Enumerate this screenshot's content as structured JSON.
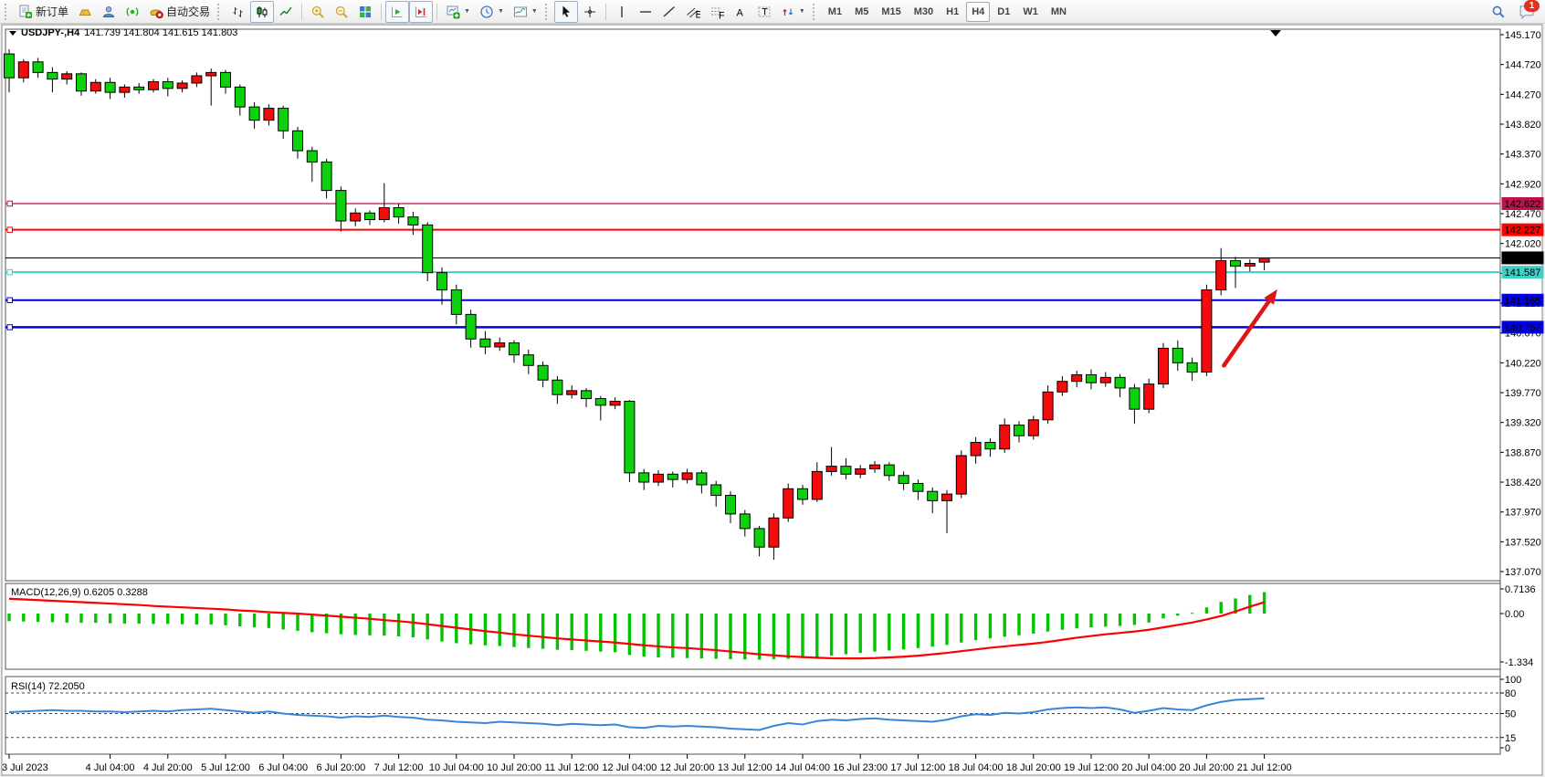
{
  "app": {
    "toolbar": {
      "new_order_label": "新订单",
      "autotrading_label": "自动交易",
      "notification_count": "1",
      "items": [
        {
          "type": "grip"
        },
        {
          "type": "button",
          "name": "new-order-button",
          "icon": "new-order-icon",
          "label_key": "new_order_label"
        },
        {
          "type": "button",
          "name": "metaeditor-button",
          "icon": "metaeditor-icon"
        },
        {
          "type": "button",
          "name": "community-button",
          "icon": "community-icon"
        },
        {
          "type": "button",
          "name": "signals-button",
          "icon": "signals-icon"
        },
        {
          "type": "button",
          "name": "autotrading-button",
          "icon": "autotrading-icon",
          "label_key": "autotrading_label"
        },
        {
          "type": "grip"
        },
        {
          "type": "button",
          "name": "bar-chart-button",
          "icon": "bar-chart-icon"
        },
        {
          "type": "button",
          "name": "candlestick-chart-button",
          "icon": "candlestick-icon",
          "active": true
        },
        {
          "type": "button",
          "name": "line-chart-button",
          "icon": "line-chart-icon"
        },
        {
          "type": "sep"
        },
        {
          "type": "button",
          "name": "zoom-in-button",
          "icon": "zoom-in-icon"
        },
        {
          "type": "button",
          "name": "zoom-out-button",
          "icon": "zoom-out-icon"
        },
        {
          "type": "button",
          "name": "tile-windows-button",
          "icon": "tile-windows-icon"
        },
        {
          "type": "sep"
        },
        {
          "type": "button",
          "name": "auto-scroll-button",
          "icon": "auto-scroll-icon",
          "active": true
        },
        {
          "type": "button",
          "name": "chart-shift-button",
          "icon": "chart-shift-icon",
          "active": true
        },
        {
          "type": "sep"
        },
        {
          "type": "button",
          "name": "new-chart-button",
          "icon": "new-chart-icon",
          "caret": true
        },
        {
          "type": "button",
          "name": "periods-button",
          "icon": "clock-icon",
          "caret": true
        },
        {
          "type": "button",
          "name": "templates-button",
          "icon": "template-icon",
          "caret": true
        },
        {
          "type": "grip"
        },
        {
          "type": "button",
          "name": "cursor-button",
          "icon": "cursor-icon",
          "active": true
        },
        {
          "type": "button",
          "name": "crosshair-button",
          "icon": "crosshair-icon"
        },
        {
          "type": "sep"
        },
        {
          "type": "button",
          "name": "vertical-line-button",
          "icon": "vertical-line-icon"
        },
        {
          "type": "button",
          "name": "horizontal-line-button",
          "icon": "horizontal-line-icon"
        },
        {
          "type": "button",
          "name": "trendline-button",
          "icon": "trendline-icon"
        },
        {
          "type": "button",
          "name": "channel-button",
          "icon": "channel-icon"
        },
        {
          "type": "button",
          "name": "fibonacci-button",
          "icon": "fibonacci-icon"
        },
        {
          "type": "button",
          "name": "text-button",
          "icon": "text-icon"
        },
        {
          "type": "button",
          "name": "label-button",
          "icon": "label-icon"
        },
        {
          "type": "button",
          "name": "arrows-button",
          "icon": "arrows-icon",
          "caret": true
        },
        {
          "type": "grip"
        },
        {
          "type": "timeframes"
        }
      ],
      "timeframes": {
        "options": [
          "M1",
          "M5",
          "M15",
          "M30",
          "H1",
          "H4",
          "D1",
          "W1",
          "MN"
        ],
        "active": "H4"
      }
    }
  },
  "chart": {
    "header": {
      "symbol": "USDJPY-,H4",
      "ohlc_readout": "141.739 141.804 141.615 141.803"
    },
    "macd_label": "MACD(12,26,9) 0.6205 0.3288",
    "rsi_label": "RSI(14) 72.2050"
  },
  "chart_data": {
    "type": "candlestick",
    "symbol": "USDJPY-",
    "timeframe": "H4",
    "current_bar": {
      "open": 141.739,
      "high": 141.804,
      "low": 141.615,
      "close": 141.803
    },
    "price_axis_ticks": [
      145.17,
      144.72,
      144.27,
      143.82,
      143.37,
      142.92,
      142.47,
      142.02,
      141.57,
      141.12,
      140.67,
      140.22,
      139.77,
      139.32,
      138.87,
      138.42,
      137.97,
      137.52,
      137.07
    ],
    "levels": [
      {
        "price": 142.622,
        "label": "142.622",
        "color": "#c01048",
        "line_width": 1.3
      },
      {
        "price": 142.227,
        "label": "142.227",
        "color": "#ff0000",
        "line_width": 2
      },
      {
        "price": 141.587,
        "label": "141.587",
        "color": "#40cfc4",
        "line_width": 2
      },
      {
        "price": 141.165,
        "label": "141.165",
        "color": "#0000e0",
        "line_width": 2
      },
      {
        "price": 140.757,
        "label": "140.757",
        "color": "#0000e0",
        "line_width": 2.6
      }
    ],
    "current_price_line": {
      "price": 141.803,
      "label": "141.803",
      "color": "#000000"
    },
    "time_labels": [
      {
        "label": "3 Jul 2023",
        "index": 0
      },
      {
        "label": "4 Jul 04:00",
        "index": 7
      },
      {
        "label": "4 Jul 20:00",
        "index": 11
      },
      {
        "label": "5 Jul 12:00",
        "index": 15
      },
      {
        "label": "6 Jul 04:00",
        "index": 19
      },
      {
        "label": "6 Jul 20:00",
        "index": 23
      },
      {
        "label": "7 Jul 12:00",
        "index": 27
      },
      {
        "label": "10 Jul 04:00",
        "index": 31
      },
      {
        "label": "10 Jul 20:00",
        "index": 35
      },
      {
        "label": "11 Jul 12:00",
        "index": 39
      },
      {
        "label": "12 Jul 04:00",
        "index": 43
      },
      {
        "label": "12 Jul 20:00",
        "index": 47
      },
      {
        "label": "13 Jul 12:00",
        "index": 51
      },
      {
        "label": "14 Jul 04:00",
        "index": 55
      },
      {
        "label": "16 Jul 23:00",
        "index": 59
      },
      {
        "label": "17 Jul 12:00",
        "index": 63
      },
      {
        "label": "18 Jul 04:00",
        "index": 67
      },
      {
        "label": "18 Jul 20:00",
        "index": 71
      },
      {
        "label": "19 Jul 12:00",
        "index": 75
      },
      {
        "label": "20 Jul 04:00",
        "index": 79
      },
      {
        "label": "20 Jul 20:00",
        "index": 83
      },
      {
        "label": "21 Jul 12:00",
        "index": 87
      }
    ],
    "candles": [
      [
        144.88,
        144.95,
        144.3,
        144.52
      ],
      [
        144.52,
        144.8,
        144.45,
        144.76
      ],
      [
        144.76,
        144.82,
        144.52,
        144.6
      ],
      [
        144.6,
        144.68,
        144.3,
        144.5
      ],
      [
        144.5,
        144.62,
        144.42,
        144.58
      ],
      [
        144.58,
        144.6,
        144.25,
        144.32
      ],
      [
        144.32,
        144.5,
        144.28,
        144.45
      ],
      [
        144.45,
        144.52,
        144.2,
        144.3
      ],
      [
        144.3,
        144.42,
        144.22,
        144.38
      ],
      [
        144.38,
        144.44,
        144.28,
        144.34
      ],
      [
        144.34,
        144.5,
        144.3,
        144.46
      ],
      [
        144.46,
        144.52,
        144.24,
        144.36
      ],
      [
        144.36,
        144.48,
        144.3,
        144.44
      ],
      [
        144.44,
        144.6,
        144.38,
        144.55
      ],
      [
        144.55,
        144.66,
        144.1,
        144.6
      ],
      [
        144.6,
        144.64,
        144.28,
        144.38
      ],
      [
        144.38,
        144.42,
        143.95,
        144.08
      ],
      [
        144.08,
        144.15,
        143.75,
        143.88
      ],
      [
        143.88,
        144.12,
        143.8,
        144.06
      ],
      [
        144.06,
        144.1,
        143.6,
        143.72
      ],
      [
        143.72,
        143.78,
        143.3,
        143.42
      ],
      [
        143.42,
        143.48,
        142.95,
        143.25
      ],
      [
        143.25,
        143.3,
        142.7,
        142.82
      ],
      [
        142.82,
        142.88,
        142.2,
        142.36
      ],
      [
        142.36,
        142.55,
        142.28,
        142.48
      ],
      [
        142.48,
        142.52,
        142.3,
        142.38
      ],
      [
        142.38,
        142.93,
        142.34,
        142.56
      ],
      [
        142.56,
        142.62,
        142.32,
        142.42
      ],
      [
        142.42,
        142.5,
        142.15,
        142.3
      ],
      [
        142.3,
        142.34,
        141.45,
        141.58
      ],
      [
        141.58,
        141.66,
        141.1,
        141.32
      ],
      [
        141.32,
        141.4,
        140.8,
        140.95
      ],
      [
        140.95,
        141.02,
        140.45,
        140.58
      ],
      [
        140.58,
        140.7,
        140.35,
        140.46
      ],
      [
        140.46,
        140.6,
        140.4,
        140.52
      ],
      [
        140.52,
        140.56,
        140.22,
        140.34
      ],
      [
        140.34,
        140.42,
        140.05,
        140.18
      ],
      [
        140.18,
        140.24,
        139.85,
        139.96
      ],
      [
        139.96,
        140.02,
        139.6,
        139.74
      ],
      [
        139.74,
        139.88,
        139.68,
        139.8
      ],
      [
        139.8,
        139.84,
        139.55,
        139.68
      ],
      [
        139.68,
        139.72,
        139.35,
        139.58
      ],
      [
        139.58,
        139.7,
        139.52,
        139.64
      ],
      [
        139.64,
        139.66,
        138.42,
        138.56
      ],
      [
        138.56,
        138.62,
        138.3,
        138.42
      ],
      [
        138.42,
        138.6,
        138.36,
        138.54
      ],
      [
        138.54,
        138.58,
        138.34,
        138.46
      ],
      [
        138.46,
        138.62,
        138.4,
        138.56
      ],
      [
        138.56,
        138.6,
        138.25,
        138.38
      ],
      [
        138.38,
        138.44,
        138.05,
        138.22
      ],
      [
        138.22,
        138.28,
        137.8,
        137.94
      ],
      [
        137.94,
        138.0,
        137.6,
        137.72
      ],
      [
        137.72,
        137.76,
        137.3,
        137.44
      ],
      [
        137.44,
        137.95,
        137.25,
        137.88
      ],
      [
        137.88,
        138.4,
        137.82,
        138.32
      ],
      [
        138.32,
        138.38,
        138.08,
        138.16
      ],
      [
        138.16,
        138.72,
        138.12,
        138.58
      ],
      [
        138.58,
        138.95,
        138.52,
        138.66
      ],
      [
        138.66,
        138.78,
        138.46,
        138.54
      ],
      [
        138.54,
        138.68,
        138.48,
        138.62
      ],
      [
        138.62,
        138.74,
        138.56,
        138.68
      ],
      [
        138.68,
        138.72,
        138.44,
        138.52
      ],
      [
        138.52,
        138.58,
        138.3,
        138.4
      ],
      [
        138.4,
        138.46,
        138.15,
        138.28
      ],
      [
        138.28,
        138.34,
        137.95,
        138.14
      ],
      [
        138.14,
        138.3,
        137.65,
        138.24
      ],
      [
        138.24,
        138.9,
        138.18,
        138.82
      ],
      [
        138.82,
        139.1,
        138.7,
        139.02
      ],
      [
        139.02,
        139.08,
        138.8,
        138.92
      ],
      [
        138.92,
        139.38,
        138.86,
        139.28
      ],
      [
        139.28,
        139.34,
        139.02,
        139.12
      ],
      [
        139.12,
        139.42,
        139.06,
        139.36
      ],
      [
        139.36,
        139.88,
        139.3,
        139.78
      ],
      [
        139.78,
        140.02,
        139.72,
        139.94
      ],
      [
        139.94,
        140.1,
        139.85,
        140.04
      ],
      [
        140.04,
        140.12,
        139.82,
        139.92
      ],
      [
        139.92,
        140.08,
        139.86,
        140.0
      ],
      [
        140.0,
        140.05,
        139.7,
        139.84
      ],
      [
        139.84,
        139.9,
        139.3,
        139.52
      ],
      [
        139.52,
        139.98,
        139.46,
        139.9
      ],
      [
        139.9,
        140.52,
        139.84,
        140.44
      ],
      [
        140.44,
        140.56,
        140.1,
        140.22
      ],
      [
        140.22,
        140.3,
        139.95,
        140.08
      ],
      [
        140.08,
        141.4,
        140.02,
        141.32
      ],
      [
        141.32,
        141.95,
        141.24,
        141.76
      ],
      [
        141.76,
        141.82,
        141.35,
        141.68
      ],
      [
        141.68,
        141.78,
        141.6,
        141.72
      ],
      [
        141.739,
        141.804,
        141.615,
        141.803
      ]
    ],
    "macd": {
      "label": "MACD(12,26,9) 0.6205 0.3288",
      "current_macd": 0.6205,
      "current_signal": 0.3288,
      "axis_ticks": [
        "0.7136",
        "0.00",
        "-1.334"
      ],
      "axis_values": [
        0.7136,
        0,
        -1.334
      ],
      "histogram": [
        -0.22,
        -0.23,
        -0.24,
        -0.25,
        -0.26,
        -0.27,
        -0.27,
        -0.28,
        -0.29,
        -0.29,
        -0.3,
        -0.3,
        -0.31,
        -0.32,
        -0.32,
        -0.34,
        -0.37,
        -0.4,
        -0.42,
        -0.46,
        -0.5,
        -0.54,
        -0.57,
        -0.6,
        -0.62,
        -0.63,
        -0.64,
        -0.66,
        -0.69,
        -0.75,
        -0.81,
        -0.86,
        -0.89,
        -0.92,
        -0.94,
        -0.97,
        -1.0,
        -1.02,
        -1.05,
        -1.06,
        -1.08,
        -1.1,
        -1.12,
        -1.2,
        -1.25,
        -1.27,
        -1.28,
        -1.29,
        -1.3,
        -1.31,
        -1.32,
        -1.33,
        -1.334,
        -1.32,
        -1.31,
        -1.29,
        -1.26,
        -1.22,
        -1.18,
        -1.14,
        -1.1,
        -1.07,
        -1.04,
        -1.0,
        -0.96,
        -0.91,
        -0.84,
        -0.77,
        -0.72,
        -0.67,
        -0.63,
        -0.58,
        -0.52,
        -0.47,
        -0.43,
        -0.4,
        -0.38,
        -0.36,
        -0.33,
        -0.26,
        -0.14,
        -0.06,
        0.02,
        0.18,
        0.34,
        0.44,
        0.54,
        0.6205
      ],
      "signal": [
        0.43,
        0.41,
        0.39,
        0.37,
        0.35,
        0.33,
        0.31,
        0.29,
        0.27,
        0.25,
        0.22,
        0.2,
        0.18,
        0.16,
        0.14,
        0.12,
        0.09,
        0.07,
        0.04,
        0.02,
        0.0,
        -0.03,
        -0.06,
        -0.09,
        -0.12,
        -0.15,
        -0.19,
        -0.22,
        -0.26,
        -0.31,
        -0.36,
        -0.41,
        -0.46,
        -0.51,
        -0.55,
        -0.6,
        -0.64,
        -0.68,
        -0.72,
        -0.75,
        -0.78,
        -0.81,
        -0.84,
        -0.88,
        -0.92,
        -0.95,
        -0.98,
        -1.0,
        -1.03,
        -1.06,
        -1.1,
        -1.14,
        -1.18,
        -1.21,
        -1.24,
        -1.26,
        -1.28,
        -1.295,
        -1.3,
        -1.3,
        -1.29,
        -1.27,
        -1.25,
        -1.22,
        -1.18,
        -1.14,
        -1.09,
        -1.04,
        -0.99,
        -0.95,
        -0.91,
        -0.87,
        -0.82,
        -0.76,
        -0.7,
        -0.65,
        -0.6,
        -0.56,
        -0.52,
        -0.47,
        -0.4,
        -0.33,
        -0.26,
        -0.17,
        -0.07,
        0.06,
        0.2,
        0.3288
      ]
    },
    "rsi": {
      "label": "RSI(14) 72.2050",
      "current": 72.205,
      "axis_ticks": [
        "100",
        "80",
        "50",
        "15",
        "0"
      ],
      "axis_values": [
        100,
        80,
        50,
        15,
        0
      ],
      "level_lines": [
        80,
        50,
        15
      ],
      "values": [
        52,
        53,
        54,
        55,
        54,
        54,
        53,
        53,
        52,
        53,
        54,
        53,
        55,
        56,
        57,
        55,
        53,
        51,
        53,
        50,
        48,
        47,
        46,
        44,
        46,
        45,
        47,
        45,
        44,
        41,
        40,
        38,
        37,
        36,
        38,
        37,
        36,
        35,
        33,
        35,
        34,
        33,
        34,
        30,
        29,
        32,
        31,
        32,
        31,
        30,
        28,
        27,
        26,
        32,
        36,
        34,
        39,
        41,
        40,
        42,
        43,
        41,
        40,
        39,
        38,
        41,
        46,
        49,
        48,
        51,
        50,
        52,
        56,
        58,
        59,
        58,
        59,
        56,
        51,
        54,
        58,
        56,
        55,
        62,
        67,
        70,
        71,
        72.2
      ]
    },
    "arrow_annotation": {
      "from_index": 84.2,
      "from_price": 140.18,
      "to_index": 87.9,
      "to_price": 141.33,
      "color": "#e01414"
    },
    "colors": {
      "bull_body": "#f40b0b",
      "bear_body": "#0cd10c",
      "wick": "#000000",
      "macd_histogram": "#00c400",
      "macd_signal": "#ff0000",
      "rsi_line": "#3787d8",
      "background": "#ffffff",
      "pane_border": "#555555",
      "axis_text": "#000000"
    }
  }
}
